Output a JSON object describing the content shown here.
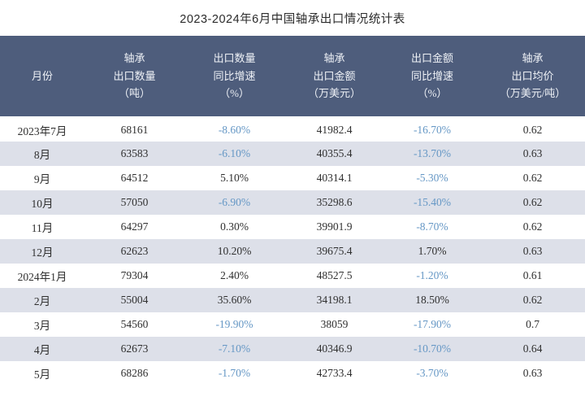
{
  "page": {
    "title": "2023-2024年6月中国轴承出口情况统计表"
  },
  "colors": {
    "header_bg": "#4e5d7c",
    "header_text": "#eef1f6",
    "row_stripe": "#dde0e9",
    "row_white": "#ffffff",
    "body_text": "#303030",
    "negative_value_text": "#6597c5",
    "title_text": "#2b2b2b"
  },
  "table": {
    "header_lines": [
      "月份",
      "轴承\n出口数量\n（吨）",
      "出口数量\n同比增速\n（%）",
      "轴承\n出口金额\n（万美元）",
      "出口金额\n同比增速\n（%）",
      "轴承\n出口均价\n（万美元/吨）"
    ]
  },
  "chart_data": {
    "type": "table",
    "title": "2023-2024年6月中国轴承出口情况统计表",
    "columns": [
      "月份",
      "轴承出口数量（吨）",
      "出口数量同比增速（%）",
      "轴承出口金额（万美元）",
      "出口金额同比增速（%）",
      "轴承出口均价（万美元/吨）"
    ],
    "rows": [
      [
        "2023年7月",
        68161,
        "-8.60%",
        41982.4,
        "-16.70%",
        0.62
      ],
      [
        "8月",
        63583,
        "-6.10%",
        40355.4,
        "-13.70%",
        0.63
      ],
      [
        "9月",
        64512,
        "5.10%",
        40314.1,
        "-5.30%",
        0.62
      ],
      [
        "10月",
        57050,
        "-6.90%",
        35298.6,
        "-15.40%",
        0.62
      ],
      [
        "11月",
        64297,
        "0.30%",
        39901.9,
        "-8.70%",
        0.62
      ],
      [
        "12月",
        62623,
        "10.20%",
        39675.4,
        "1.70%",
        0.63
      ],
      [
        "2024年1月",
        79304,
        "2.40%",
        48527.5,
        "-1.20%",
        0.61
      ],
      [
        "2月",
        55004,
        "35.60%",
        34198.1,
        "18.50%",
        0.62
      ],
      [
        "3月",
        54560,
        "-19.90%",
        38059,
        "-17.90%",
        "0.7"
      ],
      [
        "4月",
        62673,
        "-7.10%",
        40346.9,
        "-10.70%",
        0.64
      ],
      [
        "5月",
        68286,
        "-1.70%",
        42733.4,
        "-3.70%",
        0.63
      ]
    ],
    "layout": {
      "striped_rows": true,
      "grid": false,
      "negative_values_colored": true
    }
  }
}
